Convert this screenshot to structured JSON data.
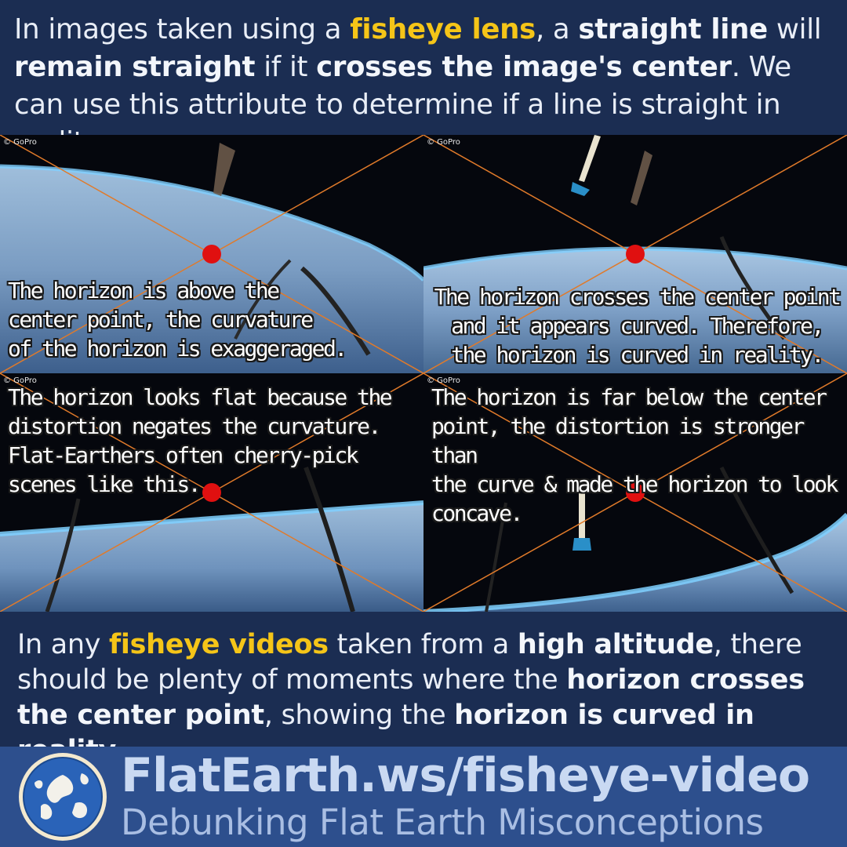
{
  "intro": {
    "t1": "In images taken using a ",
    "t2": "fisheye lens",
    "t3": ", a ",
    "t4": "straight line",
    "t5": " will ",
    "t6": "remain straight",
    "t7": " if it ",
    "t8": "crosses the image's center",
    "t9": ". We can use this attribute to determine if a line is straight in reality."
  },
  "panels": [
    {
      "credit": "© GoPro",
      "caption_lines": [
        "The horizon is above the",
        "center point, the curvature",
        "of the horizon is exaggeraged."
      ]
    },
    {
      "credit": "© GoPro",
      "caption_lines": [
        "The horizon crosses the center point",
        "and it appears curved. Therefore,",
        "the horizon is curved in reality."
      ]
    },
    {
      "credit": "© GoPro",
      "caption_lines": [
        "The horizon looks flat because the",
        "distortion negates the curvature.",
        "Flat-Earthers often cherry-pick",
        "scenes like this."
      ]
    },
    {
      "credit": "© GoPro",
      "caption_lines": [
        "The horizon is far below the center",
        "point, the distortion is stronger than",
        "the curve & made the horizon to look",
        "concave."
      ]
    }
  ],
  "outro": {
    "t1": "In any ",
    "t2": "fisheye videos",
    "t3": " taken from a ",
    "t4": "high altitude",
    "t5": ", there should be plenty of moments where the ",
    "t6": "horizon crosses the center point",
    "t7": ", showing the ",
    "t8": "horizon is curved in reality",
    "t9": "."
  },
  "footer": {
    "site": "FlatEarth.ws/fisheye-video",
    "tagline": "Debunking Flat Earth Misconceptions"
  },
  "colors": {
    "background": "#1b2d52",
    "highlight": "#f5c518",
    "footer_band": "#2d4f8d",
    "center_dot": "#e01010",
    "diagonal_lines": "#e07a2a"
  }
}
